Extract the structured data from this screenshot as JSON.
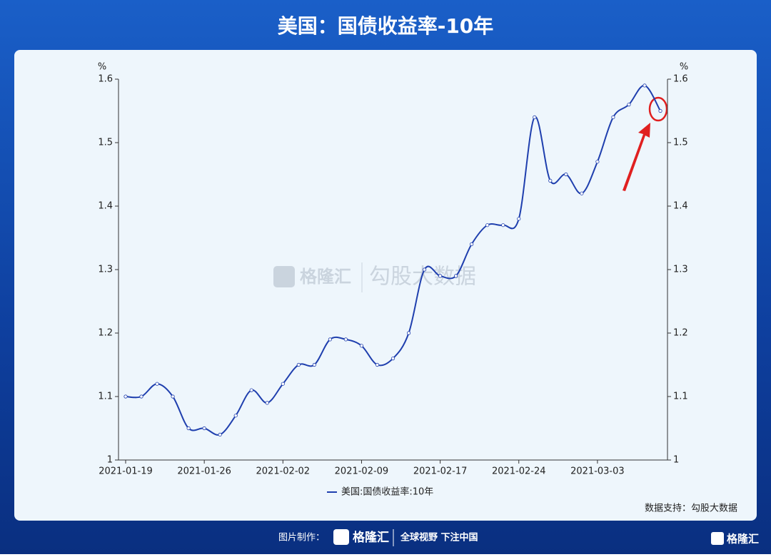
{
  "header": {
    "title": "美国：国债收益率-10年"
  },
  "chart_data": {
    "type": "line",
    "categories": [
      "2021-01-19",
      null,
      null,
      null,
      null,
      "2021-01-26",
      null,
      null,
      null,
      null,
      "2021-02-02",
      null,
      null,
      null,
      null,
      "2021-02-09",
      null,
      null,
      null,
      null,
      "2021-02-17",
      null,
      null,
      null,
      null,
      "2021-02-24",
      null,
      null,
      null,
      null,
      "2021-03-03",
      null,
      null,
      null,
      null
    ],
    "series": [
      {
        "name": "美国:国债收益率:10年",
        "color": "#1f3fae",
        "values": [
          1.1,
          1.1,
          1.12,
          1.1,
          1.05,
          1.05,
          1.04,
          1.07,
          1.11,
          1.09,
          1.12,
          1.15,
          1.15,
          1.19,
          1.19,
          1.18,
          1.15,
          1.16,
          1.2,
          1.3,
          1.29,
          1.29,
          1.34,
          1.37,
          1.37,
          1.38,
          1.54,
          1.44,
          1.45,
          1.42,
          1.47,
          1.54,
          1.56,
          1.59,
          1.55
        ]
      }
    ],
    "y_unit": "%",
    "y2_unit": "%",
    "ylim": [
      1,
      1.6
    ],
    "yticks": [
      1,
      1.1,
      1.2,
      1.3,
      1.4,
      1.5,
      1.6
    ],
    "y2lim": [
      1,
      1.6
    ],
    "y2ticks": [
      1,
      1.1,
      1.2,
      1.3,
      1.4,
      1.5,
      1.6
    ],
    "source": "数据支持：勾股大数据",
    "watermark": {
      "brand": "格隆汇",
      "product": "勾股大数据"
    }
  },
  "footer": {
    "made_by": "图片制作：",
    "brand": "格隆汇",
    "slogan": "全球视野 下注中国",
    "corner_brand": "格隆汇"
  }
}
